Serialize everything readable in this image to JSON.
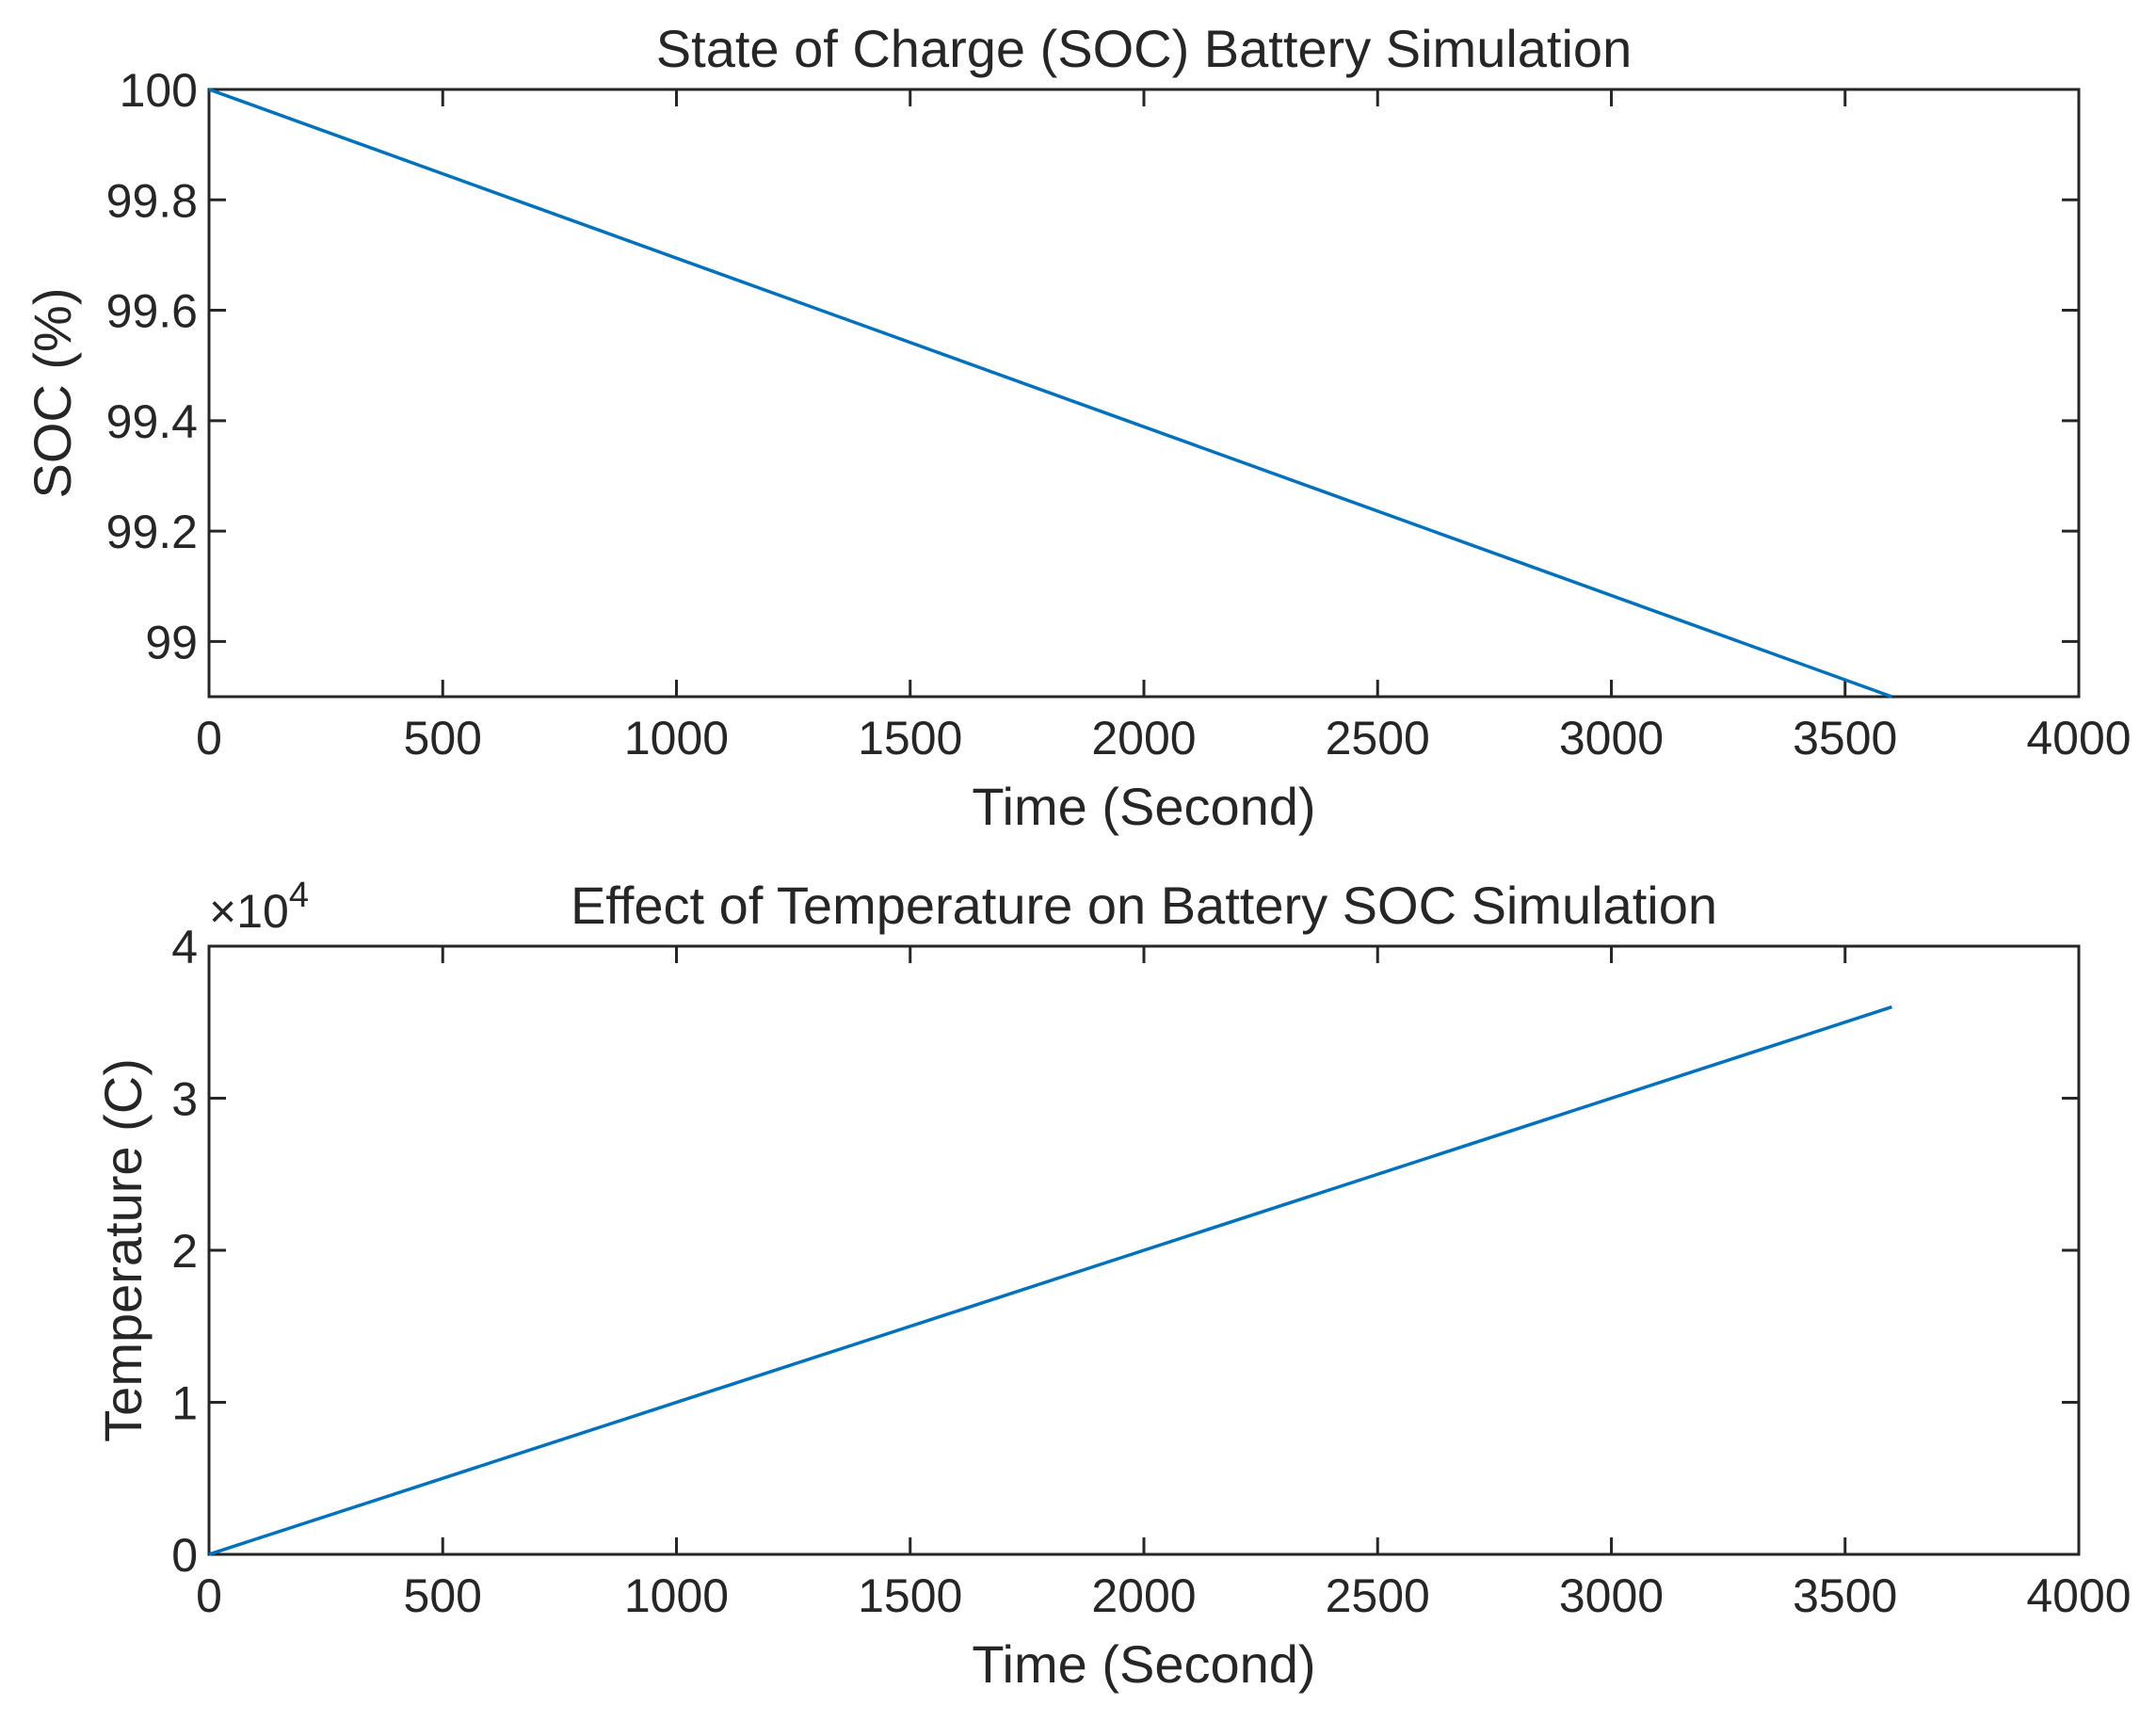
{
  "chart_data": [
    {
      "type": "line",
      "title": "State of Charge (SOC) Battery Simulation",
      "xlabel": "Time (Second)",
      "ylabel": "SOC (%)",
      "xlim": [
        0,
        4000
      ],
      "ylim": [
        98.9,
        100
      ],
      "xticks": [
        0,
        500,
        1000,
        1500,
        2000,
        2500,
        3000,
        3500,
        4000
      ],
      "yticks": [
        99,
        99.2,
        99.4,
        99.6,
        99.8,
        100
      ],
      "xtick_labels": [
        "0",
        "500",
        "1000",
        "1500",
        "2000",
        "2500",
        "3000",
        "3500",
        "4000"
      ],
      "ytick_labels": [
        "99",
        "99.2",
        "99.4",
        "99.6",
        "99.8",
        "100"
      ],
      "exponent_label": null,
      "grid": false,
      "series": [
        {
          "name": "SOC",
          "color": "#0072BD",
          "x": [
            0,
            3600
          ],
          "y": [
            100,
            98.9
          ]
        }
      ]
    },
    {
      "type": "line",
      "title": "Effect of Temperature on Battery SOC Simulation",
      "xlabel": "Time (Second)",
      "ylabel": "Temperature (C)",
      "xlim": [
        0,
        4000
      ],
      "ylim": [
        0,
        40000
      ],
      "xticks": [
        0,
        500,
        1000,
        1500,
        2000,
        2500,
        3000,
        3500,
        4000
      ],
      "yticks": [
        0,
        10000,
        20000,
        30000,
        40000
      ],
      "xtick_labels": [
        "0",
        "500",
        "1000",
        "1500",
        "2000",
        "2500",
        "3000",
        "3500",
        "4000"
      ],
      "ytick_labels": [
        "0",
        "1",
        "2",
        "3",
        "4"
      ],
      "exponent_label": {
        "base": "×10",
        "power": "4"
      },
      "grid": false,
      "series": [
        {
          "name": "Temperature",
          "color": "#0072BD",
          "x": [
            0,
            3600
          ],
          "y": [
            0,
            36000
          ]
        }
      ]
    }
  ]
}
